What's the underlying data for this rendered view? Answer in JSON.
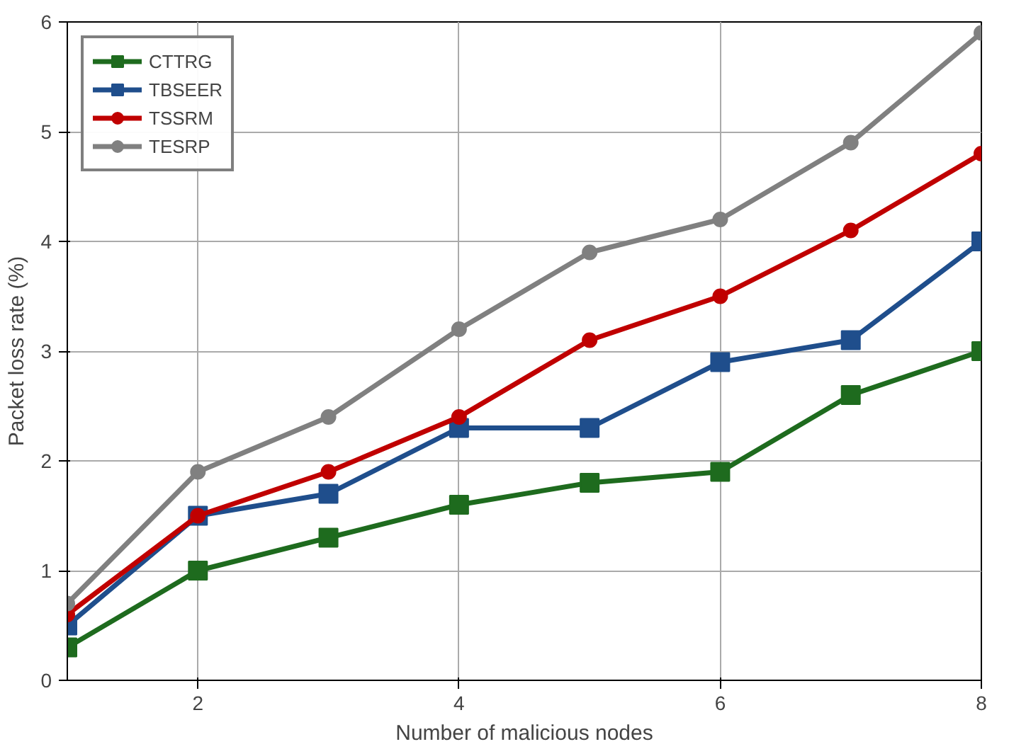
{
  "chart_data": {
    "type": "line",
    "xlabel": "Number of malicious nodes",
    "ylabel": "Packet loss rate (%)",
    "x": [
      1,
      2,
      3,
      4,
      5,
      6,
      7,
      8
    ],
    "series": [
      {
        "name": "CTTRG",
        "color": "#1e6b1e",
        "marker": "square",
        "values": [
          0.3,
          1.0,
          1.3,
          1.6,
          1.8,
          1.9,
          2.6,
          3.0
        ]
      },
      {
        "name": "TBSEER",
        "color": "#1f4e8c",
        "marker": "square",
        "values": [
          0.5,
          1.5,
          1.7,
          2.3,
          2.3,
          2.9,
          3.1,
          4.0
        ]
      },
      {
        "name": "TSSRM",
        "color": "#c00000",
        "marker": "circle",
        "values": [
          0.6,
          1.5,
          1.9,
          2.4,
          3.1,
          3.5,
          4.1,
          4.8
        ]
      },
      {
        "name": "TESRP",
        "color": "#808080",
        "marker": "circle",
        "values": [
          0.7,
          1.9,
          2.4,
          3.2,
          3.9,
          4.2,
          4.9,
          5.9
        ]
      }
    ],
    "xlim": [
      1,
      8
    ],
    "xticks": [
      2,
      4,
      6,
      8
    ],
    "ylim": [
      0,
      6
    ],
    "yticks": [
      0,
      1,
      2,
      3,
      4,
      5,
      6
    ],
    "grid": true,
    "legend": "top left",
    "line_style": "solid"
  }
}
